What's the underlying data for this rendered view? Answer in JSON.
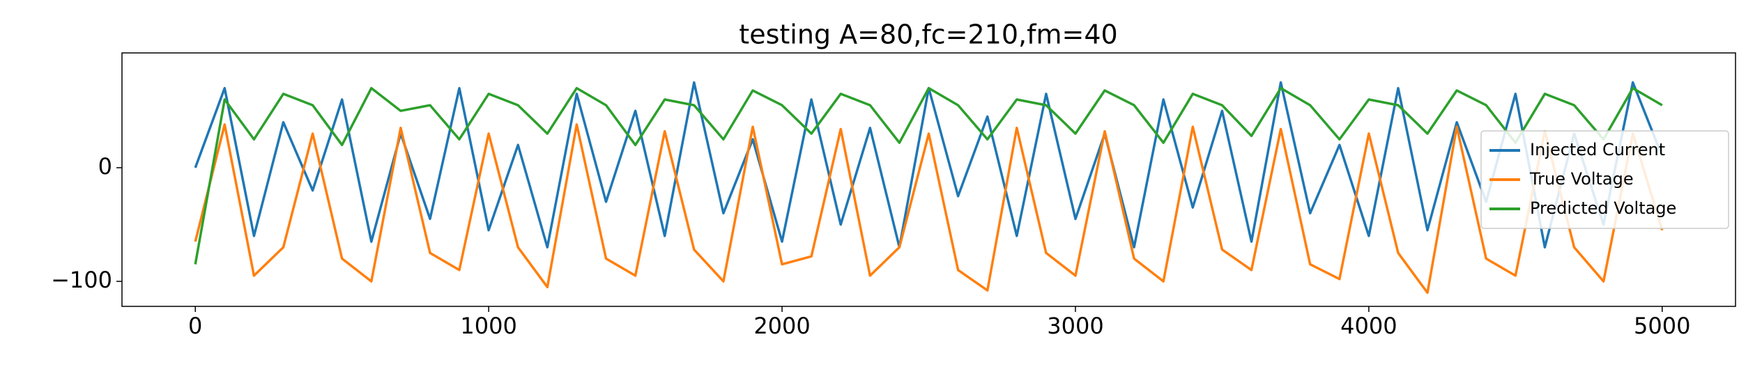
{
  "chart_data": {
    "type": "line",
    "title": "testing A=80,fc=210,fm=40",
    "x": [
      0,
      100,
      200,
      300,
      400,
      500,
      600,
      700,
      800,
      900,
      1000,
      1100,
      1200,
      1300,
      1400,
      1500,
      1600,
      1700,
      1800,
      1900,
      2000,
      2100,
      2200,
      2300,
      2400,
      2500,
      2600,
      2700,
      2800,
      2900,
      3000,
      3100,
      3200,
      3300,
      3400,
      3500,
      3600,
      3700,
      3800,
      3900,
      4000,
      4100,
      4200,
      4300,
      4400,
      4500,
      4600,
      4700,
      4800,
      4900,
      5000
    ],
    "series": [
      {
        "name": "Injected Current",
        "color": "#1f77b4",
        "values": [
          0,
          70,
          -60,
          40,
          -20,
          60,
          -65,
          30,
          -45,
          70,
          -55,
          20,
          -70,
          65,
          -30,
          50,
          -60,
          75,
          -40,
          25,
          -65,
          60,
          -50,
          35,
          -70,
          70,
          -25,
          45,
          -60,
          65,
          -45,
          30,
          -70,
          60,
          -35,
          50,
          -65,
          75,
          -40,
          20,
          -60,
          70,
          -55,
          40,
          -30,
          65,
          -70,
          30,
          -50,
          75,
          10
        ]
      },
      {
        "name": "True Voltage",
        "color": "#ff7f0e",
        "values": [
          -65,
          38,
          -95,
          -70,
          30,
          -80,
          -100,
          35,
          -75,
          -90,
          30,
          -70,
          -105,
          38,
          -80,
          -95,
          32,
          -72,
          -100,
          36,
          -85,
          -78,
          34,
          -95,
          -70,
          30,
          -90,
          -108,
          35,
          -75,
          -95,
          32,
          -80,
          -100,
          36,
          -72,
          -90,
          34,
          -85,
          -98,
          30,
          -75,
          -110,
          36,
          -80,
          -95,
          32,
          -70,
          -100,
          30,
          -55
        ]
      },
      {
        "name": "Predicted Voltage",
        "color": "#2ca02c",
        "values": [
          -85,
          60,
          25,
          65,
          55,
          20,
          70,
          50,
          55,
          25,
          65,
          55,
          30,
          70,
          55,
          20,
          60,
          55,
          25,
          68,
          55,
          30,
          65,
          55,
          22,
          70,
          55,
          25,
          60,
          55,
          30,
          68,
          55,
          22,
          65,
          55,
          28,
          70,
          55,
          25,
          60,
          55,
          30,
          68,
          55,
          22,
          65,
          55,
          25,
          70,
          55
        ]
      }
    ],
    "xlim": [
      -250,
      5250
    ],
    "xticks": [
      0,
      1000,
      2000,
      3000,
      4000,
      5000
    ],
    "ylim": [
      -122,
      101
    ],
    "yticks": [
      {
        "value": -100,
        "label": "−100"
      },
      0
    ],
    "grid": false,
    "legend_loc": "center right"
  }
}
